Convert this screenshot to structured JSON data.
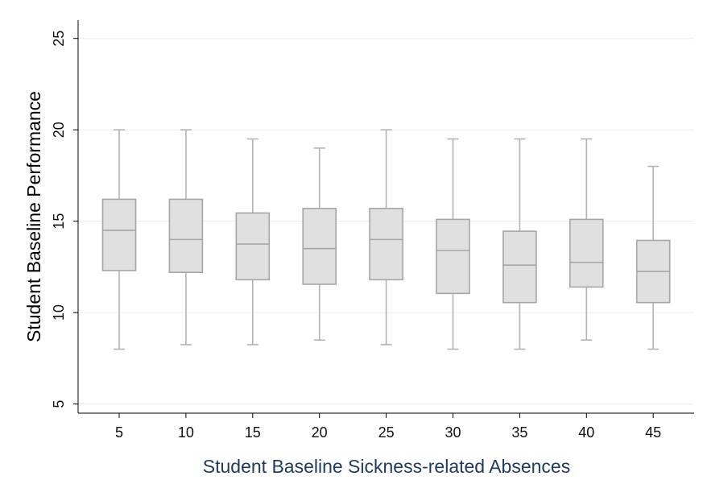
{
  "chart_data": {
    "type": "box",
    "xlabel": "Student Baseline Sickness-related Absences",
    "ylabel": "Student Baseline Performance",
    "ylim": [
      4.5,
      26
    ],
    "yticks": [
      5,
      10,
      15,
      20,
      25
    ],
    "grid": true,
    "categories": [
      "5",
      "10",
      "15",
      "20",
      "25",
      "30",
      "35",
      "40",
      "45"
    ],
    "boxes": [
      {
        "label": "5",
        "min": 8.0,
        "q1": 12.3,
        "median": 14.5,
        "q3": 16.2,
        "max": 20.0
      },
      {
        "label": "10",
        "min": 8.25,
        "q1": 12.2,
        "median": 14.0,
        "q3": 16.2,
        "max": 20.0
      },
      {
        "label": "15",
        "min": 8.25,
        "q1": 11.8,
        "median": 13.75,
        "q3": 15.45,
        "max": 19.5
      },
      {
        "label": "20",
        "min": 8.5,
        "q1": 11.55,
        "median": 13.5,
        "q3": 15.7,
        "max": 19.0
      },
      {
        "label": "25",
        "min": 8.25,
        "q1": 11.8,
        "median": 14.0,
        "q3": 15.7,
        "max": 20.0
      },
      {
        "label": "30",
        "min": 8.0,
        "q1": 11.05,
        "median": 13.4,
        "q3": 15.1,
        "max": 19.5
      },
      {
        "label": "35",
        "min": 8.0,
        "q1": 10.55,
        "median": 12.6,
        "q3": 14.45,
        "max": 19.5
      },
      {
        "label": "40",
        "min": 8.5,
        "q1": 11.4,
        "median": 12.75,
        "q3": 15.1,
        "max": 19.5
      },
      {
        "label": "45",
        "min": 8.0,
        "q1": 10.55,
        "median": 12.25,
        "q3": 13.95,
        "max": 18.0
      }
    ],
    "colors": {
      "box_fill": "#e0e0e0",
      "box_stroke": "#a6a6a6",
      "whisker": "#b3b3b3",
      "grid": "#eaf0f1",
      "axis": "#000000",
      "xlabel_color": "#1f3a5f",
      "ylabel_color": "#000000"
    }
  }
}
